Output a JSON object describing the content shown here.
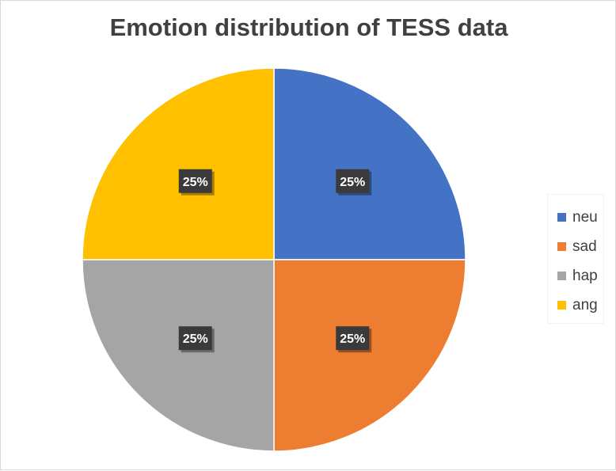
{
  "chart_data": {
    "type": "pie",
    "title": "Emotion distribution of TESS data",
    "categories": [
      "neu",
      "sad",
      "hap",
      "ang"
    ],
    "values": [
      25,
      25,
      25,
      25
    ],
    "labels": [
      "25%",
      "25%",
      "25%",
      "25%"
    ],
    "colors": [
      "#4472C4",
      "#ED7D31",
      "#A5A5A5",
      "#FFC000"
    ],
    "legend_position": "right"
  }
}
